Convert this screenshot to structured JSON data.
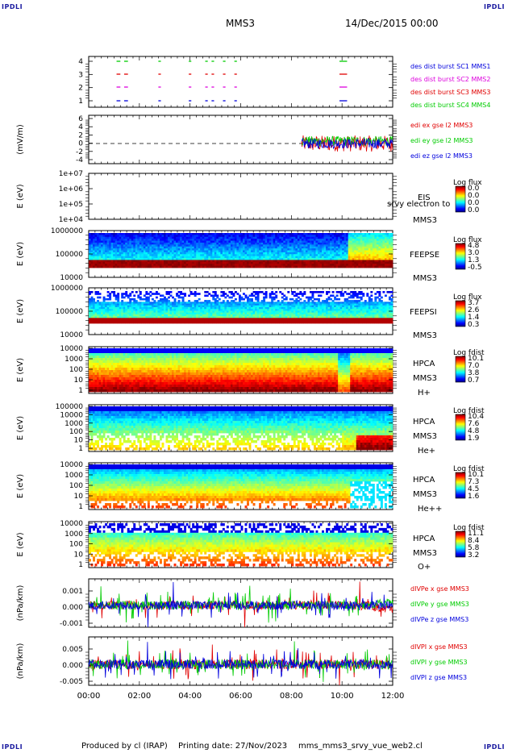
{
  "corners": {
    "tl": "IPDLI",
    "tr": "IPDLI",
    "bl": "IPDLI",
    "br": "IPDLI"
  },
  "header": {
    "spacecraft": "MMS3",
    "date": "14/Dec/2015 00:00"
  },
  "footer": {
    "produced_by": "Produced by cl (IRAP)",
    "printing_date": "Printing date: 27/Nov/2023",
    "filename": "mms_mms3_srvy_vue_web2.cl"
  },
  "colors": {
    "red": "#e00000",
    "green": "#00cc00",
    "blue": "#0000dd",
    "magenta": "#dd00dd"
  },
  "chart_data": [
    {
      "type": "scatter",
      "panel": "burst",
      "y_ticks": [
        "4",
        "3",
        "2",
        "1"
      ],
      "ylim": [
        0.5,
        4.5
      ],
      "legend": [
        {
          "label": "des dist burst SC1 MMS1",
          "color": "#0000dd"
        },
        {
          "label": "des dist burst SC2 MMS2",
          "color": "#dd00dd"
        },
        {
          "label": "des dist burst SC3 MMS3",
          "color": "#e00000"
        },
        {
          "label": "des dist burst SC4 MMS4",
          "color": "#00cc00"
        }
      ],
      "intervals": [
        [
          1.1,
          1.25
        ],
        [
          1.4,
          1.55
        ],
        [
          2.75,
          2.85
        ],
        [
          3.95,
          4.05
        ],
        [
          4.6,
          4.7
        ],
        [
          4.85,
          4.95
        ],
        [
          5.3,
          5.4
        ],
        [
          5.75,
          5.85
        ],
        [
          9.9,
          10.2
        ]
      ]
    },
    {
      "type": "line",
      "panel": "edi",
      "ylabel": "(mV/m)",
      "y_ticks": [
        "6",
        "4",
        "2",
        "0",
        "-2",
        "-4"
      ],
      "ylim": [
        -5,
        7
      ],
      "legend": [
        {
          "label": "edi ex gse l2 MMS3",
          "color": "#e00000"
        },
        {
          "label": "edi ey gse l2 MMS3",
          "color": "#00cc00"
        },
        {
          "label": "edi ez gse l2 MMS3",
          "color": "#0000dd"
        }
      ]
    },
    {
      "type": "heatmap",
      "panel": "eis",
      "ylabel": "E (eV)",
      "y_ticks": [
        "1e+07",
        "1e+06",
        "1e+05",
        "1e+04"
      ],
      "labels": [
        "EIS",
        "srvy electron to",
        "MMS3"
      ],
      "colorbar": {
        "title": "Log flux",
        "ticks": [
          "0.0",
          "0.0",
          "0.0",
          "0.0"
        ]
      }
    },
    {
      "type": "heatmap",
      "panel": "feepse",
      "ylabel": "E (eV)",
      "y_ticks": [
        "1000000",
        "100000",
        "10000"
      ],
      "labels": [
        "FEEPSE",
        "MMS3"
      ],
      "colorbar": {
        "title": "Log flux",
        "ticks": [
          "4.8",
          "3.0",
          "1.3",
          "-0.5"
        ]
      }
    },
    {
      "type": "heatmap",
      "panel": "feepsi",
      "ylabel": "E (eV)",
      "y_ticks": [
        "1000000",
        "100000",
        "10000"
      ],
      "labels": [
        "FEEPSI",
        "MMS3"
      ],
      "colorbar": {
        "title": "Log flux",
        "ticks": [
          "3.7",
          "2.6",
          "1.4",
          "0.3"
        ]
      }
    },
    {
      "type": "heatmap",
      "panel": "hpca_h",
      "ylabel": "E (eV)",
      "y_ticks": [
        "10000",
        "1000",
        "100",
        "10",
        "1"
      ],
      "labels": [
        "HPCA",
        "MMS3",
        "H+"
      ],
      "colorbar": {
        "title": "Log fdist",
        "ticks": [
          "10.1",
          "7.0",
          "3.8",
          "0.7"
        ]
      }
    },
    {
      "type": "heatmap",
      "panel": "hpca_he",
      "ylabel": "E (eV)",
      "y_ticks": [
        "100000",
        "10000",
        "1000",
        "100",
        "10",
        "1"
      ],
      "labels": [
        "HPCA",
        "MMS3",
        "He+"
      ],
      "colorbar": {
        "title": "Log fdist",
        "ticks": [
          "10.4",
          "7.6",
          "4.8",
          "1.9"
        ]
      }
    },
    {
      "type": "heatmap",
      "panel": "hpca_hepp",
      "ylabel": "E (eV)",
      "y_ticks": [
        "10000",
        "1000",
        "100",
        "10",
        "1"
      ],
      "labels": [
        "HPCA",
        "MMS3",
        "He++"
      ],
      "colorbar": {
        "title": "Log fdist",
        "ticks": [
          "10.1",
          "7.3",
          "4.5",
          "1.6"
        ]
      }
    },
    {
      "type": "heatmap",
      "panel": "hpca_o",
      "ylabel": "E (eV)",
      "y_ticks": [
        "10000",
        "1000",
        "100",
        "10",
        "1"
      ],
      "labels": [
        "HPCA",
        "MMS3",
        "O+"
      ],
      "colorbar": {
        "title": "Log fdist",
        "ticks": [
          "11.1",
          "8.4",
          "5.8",
          "3.2"
        ]
      }
    },
    {
      "type": "line",
      "panel": "divpe",
      "ylabel": "(nPa/km)",
      "y_ticks": [
        "0.001",
        "0.000",
        "-0.001"
      ],
      "ylim": [
        -0.0015,
        0.0018
      ],
      "legend": [
        {
          "label": "dIVPe x gse MMS3",
          "color": "#e00000"
        },
        {
          "label": "dIVPe y gse MMS3",
          "color": "#00cc00"
        },
        {
          "label": "dIVPe z gse MMS3",
          "color": "#0000dd"
        }
      ]
    },
    {
      "type": "line",
      "panel": "divpi",
      "ylabel": "(nPa/km)",
      "y_ticks": [
        "0.005",
        "0.000",
        "-0.005"
      ],
      "ylim": [
        -0.0065,
        0.0085
      ],
      "legend": [
        {
          "label": "dIVPI x gse MMS3",
          "color": "#e00000"
        },
        {
          "label": "dIVPI y gse MMS3",
          "color": "#00cc00"
        },
        {
          "label": "dIVPI z gse MMS3",
          "color": "#0000dd"
        }
      ]
    }
  ],
  "x_axis": {
    "ticks": [
      "00:00",
      "02:00",
      "04:00",
      "06:00",
      "08:00",
      "10:00",
      "12:00"
    ],
    "xlim": [
      0,
      12
    ]
  }
}
